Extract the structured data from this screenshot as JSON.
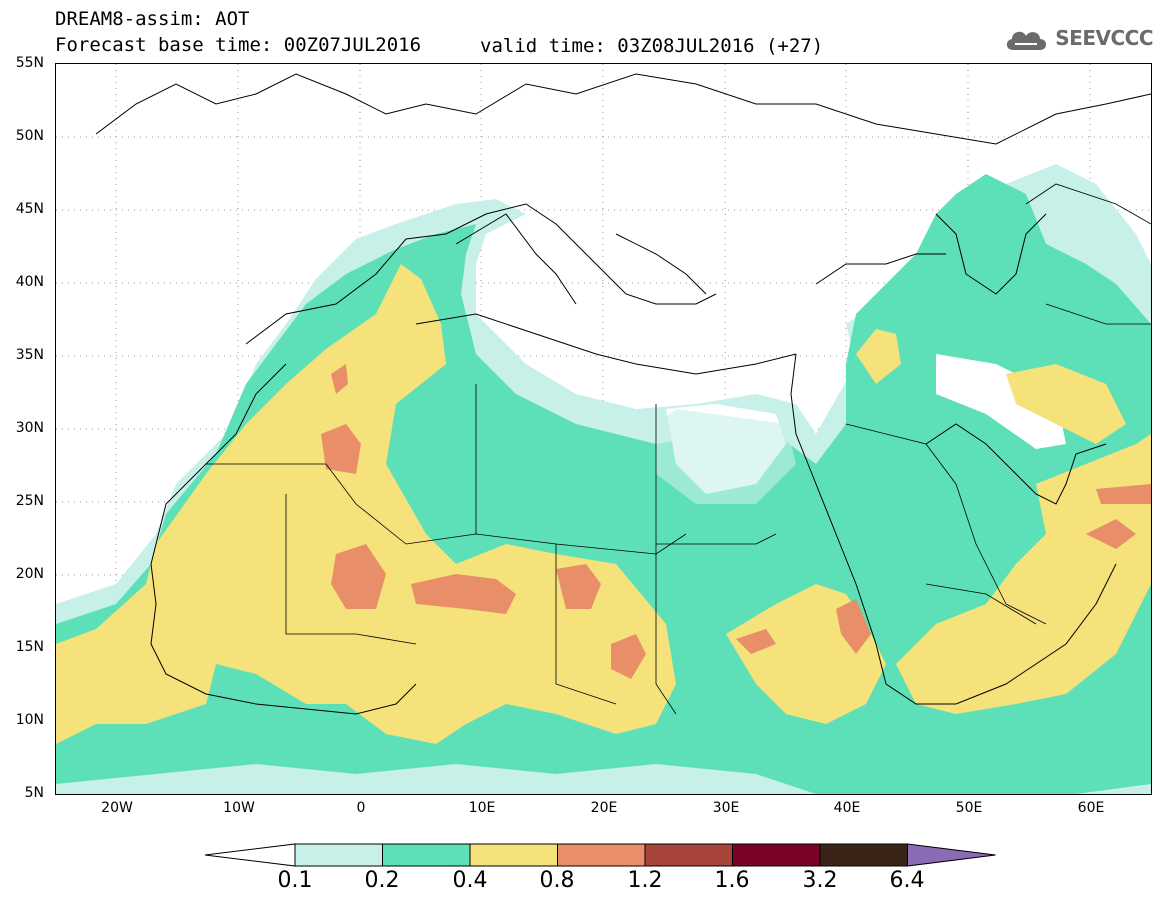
{
  "header": {
    "line1": "DREAM8-assim: AOT",
    "base": "Forecast base time: 00Z07JUL2016",
    "valid": "valid time: 03Z08JUL2016 (+27)"
  },
  "logo": {
    "text": "SEEVCCC",
    "icon": "cloud-icon",
    "color": "#6b6b6b"
  },
  "map": {
    "lat_labels": [
      "55N",
      "50N",
      "45N",
      "40N",
      "35N",
      "30N",
      "25N",
      "20N",
      "15N",
      "10N",
      "5N"
    ],
    "lon_labels": [
      "20W",
      "10W",
      "0",
      "10E",
      "20E",
      "30E",
      "40E",
      "50E",
      "60E"
    ],
    "lat_range": [
      5,
      55
    ],
    "lon_range": [
      -25,
      65
    ]
  },
  "colorbar": {
    "labels": [
      "0.1",
      "0.2",
      "0.4",
      "0.8",
      "1.2",
      "1.6",
      "3.2",
      "6.4"
    ],
    "colors": [
      "#ffffff",
      "#c7f0e8",
      "#5de0b8",
      "#f5e27a",
      "#e88f6a",
      "#a8453a",
      "#7d0228",
      "#3a2418",
      "#8a6bb5"
    ]
  }
}
